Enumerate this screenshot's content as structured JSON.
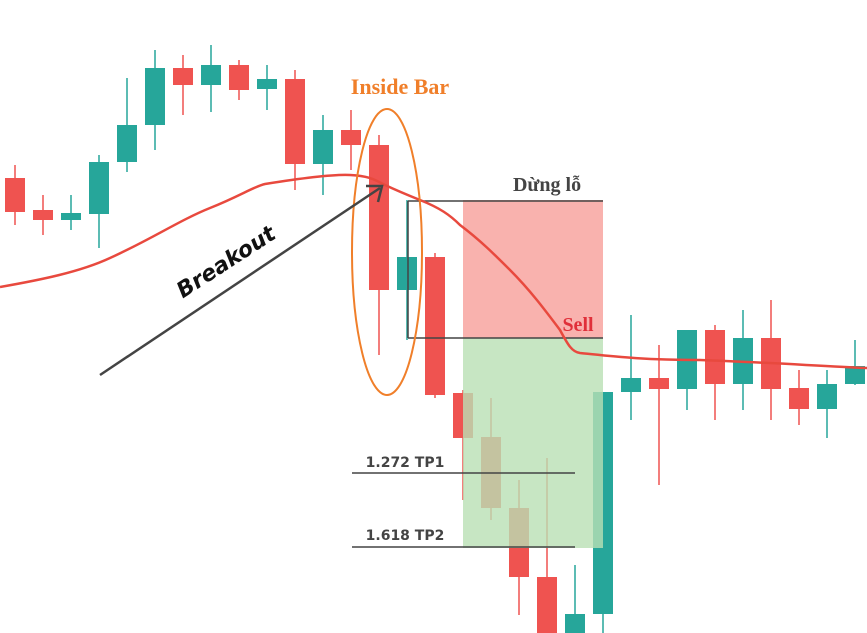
{
  "labels": {
    "inside_bar": "Inside Bar",
    "stop_loss": "Dừng lỗ",
    "sell": "Sell",
    "breakout": "Breakout",
    "tp1": "1.272 TP1",
    "tp2": "1.618 TP2"
  }
}
